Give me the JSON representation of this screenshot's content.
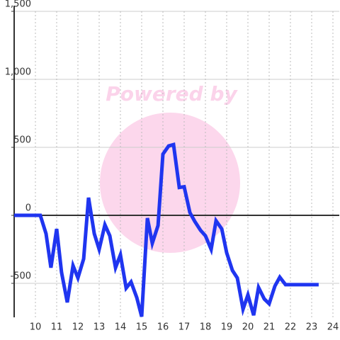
{
  "chart_data": {
    "type": "line",
    "watermark": "Powered by",
    "x": [
      9,
      10.23,
      10.5,
      10.73,
      11,
      11.23,
      11.5,
      11.77,
      12,
      12.27,
      12.5,
      12.77,
      13,
      13.27,
      13.5,
      13.77,
      14,
      14.27,
      14.5,
      14.77,
      15,
      15.27,
      15.5,
      15.77,
      16,
      16.27,
      16.5,
      16.77,
      17,
      17.27,
      17.5,
      17.77,
      18,
      18.27,
      18.5,
      18.77,
      19,
      19.27,
      19.5,
      19.77,
      20,
      20.27,
      20.5,
      20.77,
      21,
      21.27,
      21.5,
      21.77,
      23.33
    ],
    "series": [
      {
        "color": "#1f35f0",
        "values": [
          0,
          0,
          -135,
          -385,
          -100,
          -420,
          -640,
          -370,
          -460,
          -320,
          130,
          -135,
          -250,
          -70,
          -150,
          -385,
          -290,
          -535,
          -490,
          -605,
          -745,
          -20,
          -205,
          -75,
          450,
          510,
          520,
          205,
          210,
          20,
          -45,
          -110,
          -150,
          -250,
          -40,
          -100,
          -275,
          -405,
          -460,
          -690,
          -585,
          -735,
          -530,
          -615,
          -650,
          -520,
          -455,
          -510,
          -510
        ]
      }
    ],
    "xlim": [
      9,
      24.3
    ],
    "xticks": [
      10,
      11,
      12,
      13,
      14,
      15,
      16,
      17,
      18,
      19,
      20,
      21,
      22,
      23,
      24
    ],
    "ylim": [
      -750,
      1500
    ],
    "yticks": [
      {
        "value": -500,
        "label": "-500"
      },
      0,
      500,
      {
        "value": 1000,
        "label": "1,000"
      },
      {
        "value": 1500,
        "label": "1,500"
      }
    ],
    "grid": true
  }
}
